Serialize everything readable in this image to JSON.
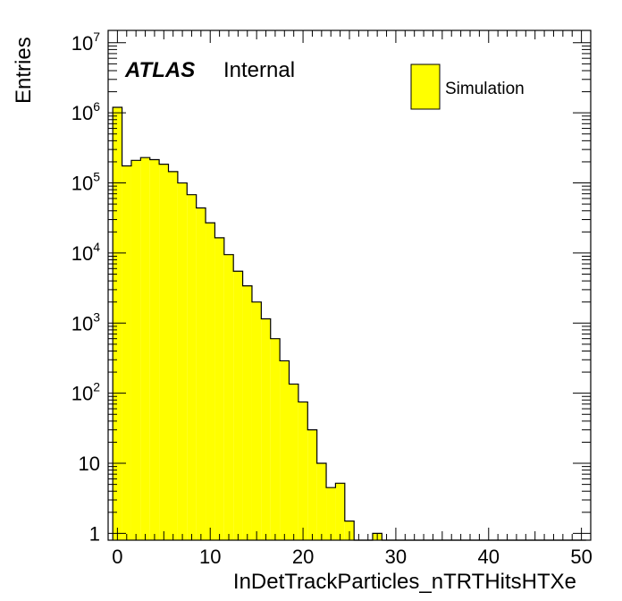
{
  "chart_data": {
    "type": "histogram",
    "xlabel": "InDetTrackParticles_nTRTHitsHTXe",
    "ylabel": "Entries",
    "xlim": [
      -1,
      51
    ],
    "ylim": [
      0.8,
      15000000
    ],
    "log_y": true,
    "bin_width": 1,
    "bin_start": -0.5,
    "values": [
      1200000,
      175000,
      210000,
      230000,
      215000,
      185000,
      145000,
      100000,
      68000,
      44000,
      27000,
      16500,
      9500,
      5500,
      3400,
      2000,
      1150,
      600,
      290,
      135,
      75,
      30,
      10,
      4.5,
      5.2,
      1.5,
      0,
      0,
      1,
      0,
      0,
      0,
      0,
      0,
      0,
      0,
      0,
      0,
      0,
      0,
      0,
      0,
      0,
      0,
      0,
      0,
      0,
      0,
      0,
      0,
      0
    ],
    "x_ticks": [
      "0",
      "10",
      "20",
      "30",
      "40",
      "50"
    ],
    "y_ticks": [
      {
        "value": 1,
        "base": "1",
        "exp": ""
      },
      {
        "value": 10,
        "base": "10",
        "exp": ""
      },
      {
        "value": 100,
        "base": "10",
        "exp": "2"
      },
      {
        "value": 1000,
        "base": "10",
        "exp": "3"
      },
      {
        "value": 10000,
        "base": "10",
        "exp": "4"
      },
      {
        "value": 100000,
        "base": "10",
        "exp": "5"
      },
      {
        "value": 1000000,
        "base": "10",
        "exp": "6"
      },
      {
        "value": 10000000,
        "base": "10",
        "exp": "7"
      }
    ],
    "fill_color": "#ffff00",
    "line_color": "#000000",
    "legend": {
      "label": "Simulation",
      "placement": "top-right"
    },
    "atlas_label": "ATLAS",
    "status_label": "Internal"
  }
}
